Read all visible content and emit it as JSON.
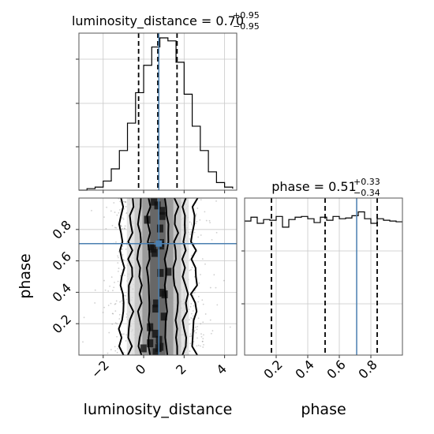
{
  "chart_data": [
    {
      "type": "histogram",
      "panel": "luminosity_distance marginal",
      "title_param": "luminosity_distance",
      "title_value": "0.70",
      "title_plus": "+0.95",
      "title_minus": "−0.95",
      "xlim": [
        -3.2,
        4.6
      ],
      "bins": [
        -3.2,
        -2.8,
        -2.4,
        -2.0,
        -1.6,
        -1.2,
        -0.8,
        -0.4,
        0.0,
        0.4,
        0.8,
        1.2,
        1.6,
        2.0,
        2.4,
        2.8,
        3.2,
        3.6,
        4.0,
        4.4
      ],
      "counts": [
        0,
        0.01,
        0.02,
        0.06,
        0.14,
        0.26,
        0.44,
        0.64,
        0.82,
        0.94,
        1.0,
        0.98,
        0.84,
        0.63,
        0.42,
        0.26,
        0.12,
        0.05,
        0.02,
        0.01
      ],
      "quantiles": [
        -0.25,
        0.7,
        1.65
      ],
      "truth": 0.75,
      "grid": true
    },
    {
      "type": "scatter-contour",
      "panel": "luminosity_distance vs phase",
      "xlabel": "luminosity_distance",
      "ylabel": "phase",
      "xlim": [
        -3.2,
        4.6
      ],
      "ylim": [
        0.0,
        1.0
      ],
      "xticks": [
        -2,
        0,
        2,
        4
      ],
      "xtick_labels": [
        "−2",
        "0",
        "2",
        "4"
      ],
      "yticks": [
        0.2,
        0.4,
        0.6,
        0.8
      ],
      "ytick_labels": [
        "0.2",
        "0.4",
        "0.6",
        "0.8"
      ],
      "truth_point": [
        0.75,
        0.71
      ],
      "density_center_x": 0.7,
      "density_sigma_x": 0.95,
      "contour_levels_halfwidth_x": [
        0.45,
        0.9,
        1.35,
        1.8
      ],
      "grid": true
    },
    {
      "type": "histogram",
      "panel": "phase marginal",
      "title_param": "phase",
      "title_value": "0.51",
      "title_plus": "+0.33",
      "title_minus": "−0.34",
      "xlabel": "phase",
      "xlim": [
        0.0,
        1.0
      ],
      "xticks": [
        0.2,
        0.4,
        0.6,
        0.8
      ],
      "xtick_labels": [
        "0.2",
        "0.4",
        "0.6",
        "0.8"
      ],
      "bins": [
        0.0,
        0.04,
        0.08,
        0.12,
        0.16,
        0.2,
        0.24,
        0.28,
        0.32,
        0.36,
        0.4,
        0.44,
        0.48,
        0.52,
        0.56,
        0.6,
        0.64,
        0.68,
        0.72,
        0.76,
        0.8,
        0.84,
        0.88,
        0.92,
        0.96,
        1.0
      ],
      "counts": [
        0.93,
        0.98,
        0.9,
        0.95,
        0.94,
        0.99,
        0.85,
        0.95,
        0.98,
        0.99,
        0.96,
        0.91,
        0.98,
        0.94,
        0.99,
        0.96,
        0.97,
        1.0,
        1.05,
        0.96,
        0.9,
        0.96,
        0.94,
        0.93,
        0.92
      ],
      "quantiles": [
        0.17,
        0.51,
        0.84
      ],
      "truth": 0.71,
      "grid": true
    }
  ]
}
